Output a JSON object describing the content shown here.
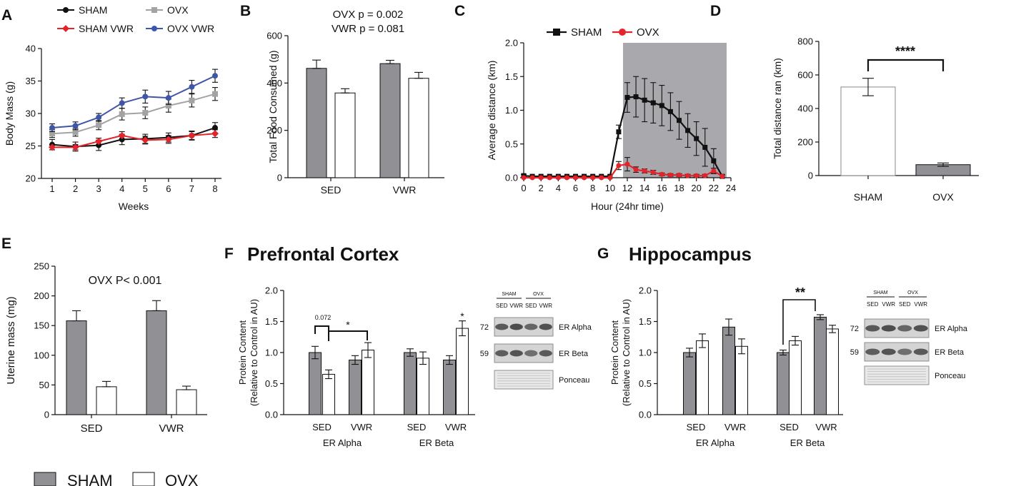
{
  "legend": {
    "sham_label": "SHAM",
    "ovx_label": "OVX"
  },
  "colors": {
    "sham_fill": "#909095",
    "ovx_fill": "#ffffff",
    "sham_line": "#111111",
    "sham_vwr_line": "#e3242b",
    "ovx_line": "#a3a3a3",
    "ovx_vwr_line": "#3f56a8",
    "shade": "#a9a9ad"
  },
  "panels": {
    "A": {
      "letter": "A"
    },
    "B": {
      "letter": "B"
    },
    "C": {
      "letter": "C"
    },
    "D": {
      "letter": "D"
    },
    "E": {
      "letter": "E"
    },
    "F": {
      "letter": "F",
      "title": "Prefrontal Cortex"
    },
    "G": {
      "letter": "G",
      "title": "Hippocampus"
    }
  },
  "chart_data": [
    {
      "id": "A",
      "type": "line",
      "xlabel": "Weeks",
      "ylabel": "Body Mass (g)",
      "x": [
        1,
        2,
        3,
        4,
        5,
        6,
        7,
        8
      ],
      "ylim": [
        20,
        40
      ],
      "yticks": [
        20,
        25,
        30,
        35,
        40
      ],
      "legend": [
        "SHAM",
        "OVX",
        "SHAM VWR",
        "OVX VWR"
      ],
      "series": [
        {
          "name": "SHAM",
          "color": "#111111",
          "marker": "circle",
          "values": [
            25.2,
            24.9,
            25.1,
            26.0,
            26.1,
            26.3,
            26.6,
            27.8
          ],
          "errors": [
            0.8,
            0.7,
            0.8,
            0.8,
            0.7,
            0.7,
            0.7,
            0.8
          ]
        },
        {
          "name": "OVX",
          "color": "#a3a3a3",
          "marker": "square",
          "values": [
            26.9,
            27.1,
            28.2,
            29.9,
            30.1,
            31.2,
            32.0,
            33.0
          ],
          "errors": [
            0.6,
            0.6,
            0.7,
            0.9,
            0.9,
            1.0,
            1.0,
            1.0
          ]
        },
        {
          "name": "SHAM VWR",
          "color": "#e3242b",
          "marker": "diamond",
          "values": [
            24.8,
            24.8,
            25.7,
            26.6,
            25.9,
            26.0,
            26.6,
            26.9
          ],
          "errors": [
            0.4,
            0.4,
            0.5,
            0.6,
            0.6,
            0.6,
            0.6,
            0.6
          ]
        },
        {
          "name": "OVX VWR",
          "color": "#3f56a8",
          "marker": "circle",
          "values": [
            27.8,
            28.1,
            29.4,
            31.6,
            32.6,
            32.4,
            34.1,
            35.8
          ],
          "errors": [
            0.6,
            0.6,
            0.6,
            0.8,
            1.0,
            1.0,
            1.0,
            1.0
          ]
        }
      ]
    },
    {
      "id": "B",
      "type": "bar",
      "ylabel": "Total Food Consumed (g)",
      "categories": [
        "SED",
        "VWR"
      ],
      "ylim": [
        0,
        600
      ],
      "yticks": [
        0,
        200,
        400,
        600
      ],
      "annotations": [
        "OVX p = 0.002",
        "VWR p = 0.081"
      ],
      "series": [
        {
          "name": "SHAM",
          "values": [
            462,
            482
          ],
          "errors": [
            35,
            14
          ]
        },
        {
          "name": "OVX",
          "values": [
            358,
            420
          ],
          "errors": [
            18,
            25
          ]
        }
      ]
    },
    {
      "id": "C",
      "type": "line",
      "xlabel": "Hour (24hr time)",
      "ylabel": "Average distance (km)",
      "xlim": [
        0,
        24
      ],
      "xticks": [
        0,
        2,
        4,
        6,
        8,
        10,
        12,
        14,
        16,
        18,
        20,
        22,
        24
      ],
      "ylim": [
        0,
        2.0
      ],
      "yticks": [
        "0.0",
        "0.5",
        "1.0",
        "1.5",
        "2.0"
      ],
      "shaded_range": [
        11.5,
        23.5
      ],
      "series": [
        {
          "name": "SHAM",
          "color": "#111111",
          "marker": "square",
          "x": [
            0,
            1,
            2,
            3,
            4,
            5,
            6,
            7,
            8,
            9,
            10,
            11,
            12,
            13,
            14,
            15,
            16,
            17,
            18,
            19,
            20,
            21,
            22,
            23
          ],
          "values": [
            0.03,
            0.02,
            0.02,
            0.02,
            0.02,
            0.02,
            0.02,
            0.02,
            0.02,
            0.02,
            0.02,
            0.68,
            1.19,
            1.2,
            1.15,
            1.11,
            1.07,
            0.98,
            0.85,
            0.7,
            0.58,
            0.45,
            0.25,
            0.02
          ],
          "errors": [
            0.02,
            0.01,
            0.01,
            0.01,
            0.01,
            0.01,
            0.01,
            0.01,
            0.01,
            0.01,
            0.02,
            0.1,
            0.22,
            0.3,
            0.32,
            0.3,
            0.3,
            0.28,
            0.28,
            0.25,
            0.25,
            0.28,
            0.18,
            0.02
          ]
        },
        {
          "name": "OVX",
          "color": "#e3242b",
          "marker": "circle",
          "x": [
            0,
            1,
            2,
            3,
            4,
            5,
            6,
            7,
            8,
            9,
            10,
            11,
            12,
            13,
            14,
            15,
            16,
            17,
            18,
            19,
            20,
            21,
            22,
            23
          ],
          "values": [
            0.0,
            0.0,
            0.0,
            0.0,
            0.0,
            0.0,
            0.0,
            0.0,
            0.0,
            0.0,
            0.0,
            0.18,
            0.2,
            0.12,
            0.1,
            0.08,
            0.05,
            0.04,
            0.04,
            0.03,
            0.03,
            0.03,
            0.1,
            0.02
          ],
          "errors": [
            0.0,
            0.0,
            0.0,
            0.0,
            0.0,
            0.0,
            0.0,
            0.0,
            0.0,
            0.0,
            0.0,
            0.06,
            0.1,
            0.04,
            0.03,
            0.03,
            0.02,
            0.02,
            0.02,
            0.02,
            0.02,
            0.02,
            0.04,
            0.01
          ]
        }
      ]
    },
    {
      "id": "D",
      "type": "bar",
      "ylabel": "Total distance ran (km)",
      "categories": [
        "SHAM",
        "OVX"
      ],
      "ylim": [
        0,
        800
      ],
      "yticks": [
        0,
        200,
        400,
        600,
        800
      ],
      "values": [
        528,
        65
      ],
      "errors": [
        52,
        10
      ],
      "significance": "****"
    },
    {
      "id": "E",
      "type": "bar",
      "ylabel": "Uterine mass (mg)",
      "categories": [
        "SED",
        "VWR"
      ],
      "ylim": [
        0,
        250
      ],
      "yticks": [
        0,
        50,
        100,
        150,
        200,
        250
      ],
      "annotations": [
        "OVX P< 0.001"
      ],
      "series": [
        {
          "name": "SHAM",
          "values": [
            158,
            175
          ],
          "errors": [
            17,
            17
          ]
        },
        {
          "name": "OVX",
          "values": [
            47,
            42
          ],
          "errors": [
            9,
            6
          ]
        }
      ]
    },
    {
      "id": "F",
      "type": "bar",
      "title": "Prefrontal Cortex",
      "ylabel": [
        "Protein Content",
        "(Relative to Control in AU)"
      ],
      "ylim": [
        0,
        2.0
      ],
      "yticks": [
        "0.0",
        "0.5",
        "1.0",
        "1.5",
        "2.0"
      ],
      "groups": [
        {
          "name": "ER Alpha",
          "categories": [
            "SED",
            "VWR"
          ]
        },
        {
          "name": "ER Beta",
          "categories": [
            "SED",
            "VWR"
          ]
        }
      ],
      "series": [
        {
          "name": "SHAM",
          "values": [
            1.0,
            0.88,
            1.0,
            0.88
          ],
          "errors": [
            0.1,
            0.07,
            0.06,
            0.07
          ]
        },
        {
          "name": "OVX",
          "values": [
            0.65,
            1.04,
            0.91,
            1.39
          ],
          "errors": [
            0.07,
            0.12,
            0.1,
            0.12
          ]
        }
      ],
      "annotations": {
        "bracket1": "0.072",
        "bracket2": "*",
        "beta_vwr": "*"
      },
      "blot": {
        "headers": [
          "SHAM",
          "OVX"
        ],
        "subheaders": [
          "SED",
          "VWR",
          "SED",
          "VWR"
        ],
        "mw": [
          "72",
          "59"
        ],
        "rows": [
          "ER Alpha",
          "ER Beta",
          "Ponceau"
        ]
      }
    },
    {
      "id": "G",
      "type": "bar",
      "title": "Hippocampus",
      "ylabel": [
        "Protein Content",
        "(Relative to Control in AU)"
      ],
      "ylim": [
        0,
        2.0
      ],
      "yticks": [
        "0.0",
        "0.5",
        "1.0",
        "1.5",
        "2.0"
      ],
      "groups": [
        {
          "name": "ER Alpha",
          "categories": [
            "SED",
            "VWR"
          ]
        },
        {
          "name": "ER Beta",
          "categories": [
            "SED",
            "VWR"
          ]
        }
      ],
      "series": [
        {
          "name": "SHAM",
          "values": [
            1.0,
            1.41,
            1.0,
            1.57
          ],
          "errors": [
            0.07,
            0.13,
            0.04,
            0.04
          ]
        },
        {
          "name": "OVX",
          "values": [
            1.19,
            1.1,
            1.19,
            1.38
          ],
          "errors": [
            0.11,
            0.12,
            0.07,
            0.06
          ]
        }
      ],
      "annotations": {
        "bracket": "**"
      },
      "blot": {
        "headers": [
          "SHAM",
          "OVX"
        ],
        "subheaders": [
          "SED",
          "VWR",
          "SED",
          "VWR"
        ],
        "mw": [
          "72",
          "59"
        ],
        "rows": [
          "ER Alpha",
          "ER Beta",
          "Ponceau"
        ]
      }
    }
  ]
}
